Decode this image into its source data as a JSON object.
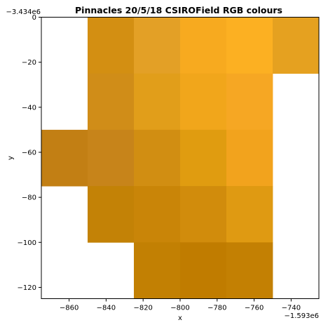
{
  "chart_data": {
    "type": "heatmap",
    "title": "Pinnacles 20/5/18 CSIROField RGB colours",
    "xlabel": "x",
    "ylabel": "y",
    "x_offset_label": "−1.593e6",
    "y_offset_label": "−3.434e6",
    "xlim": [
      -875,
      -725
    ],
    "ylim": [
      -125,
      0
    ],
    "xticks": [
      -860,
      -840,
      -820,
      -800,
      -780,
      -760,
      -740
    ],
    "xtick_labels": [
      "−860",
      "−840",
      "−820",
      "−800",
      "−780",
      "−760",
      "−740"
    ],
    "yticks": [
      0,
      -20,
      -40,
      -60,
      -80,
      -100,
      -120
    ],
    "ytick_labels": [
      "0",
      "−20",
      "−40",
      "−60",
      "−80",
      "−100",
      "−120"
    ],
    "grid": false,
    "cell_width": 25,
    "cell_height": 25,
    "cells": [
      {
        "x": -850,
        "y": 0,
        "color": "#d38f12"
      },
      {
        "x": -825,
        "y": 0,
        "color": "#e3a026"
      },
      {
        "x": -800,
        "y": 0,
        "color": "#f7aa1f"
      },
      {
        "x": -775,
        "y": 0,
        "color": "#fcb022"
      },
      {
        "x": -750,
        "y": 0,
        "color": "#e5a120"
      },
      {
        "x": -850,
        "y": -25,
        "color": "#d08d18"
      },
      {
        "x": -825,
        "y": -25,
        "color": "#e19e1a"
      },
      {
        "x": -800,
        "y": -25,
        "color": "#f1a61b"
      },
      {
        "x": -775,
        "y": -25,
        "color": "#f6a723"
      },
      {
        "x": -875,
        "y": -50,
        "color": "#c27f14"
      },
      {
        "x": -850,
        "y": -50,
        "color": "#c7841a"
      },
      {
        "x": -825,
        "y": -50,
        "color": "#d18e12"
      },
      {
        "x": -800,
        "y": -50,
        "color": "#e09c10"
      },
      {
        "x": -775,
        "y": -50,
        "color": "#f2a31d"
      },
      {
        "x": -850,
        "y": -75,
        "color": "#c38206"
      },
      {
        "x": -825,
        "y": -75,
        "color": "#c98508"
      },
      {
        "x": -800,
        "y": -75,
        "color": "#d18c0c"
      },
      {
        "x": -775,
        "y": -75,
        "color": "#df9a12"
      },
      {
        "x": -825,
        "y": -100,
        "color": "#c28003"
      },
      {
        "x": -800,
        "y": -100,
        "color": "#c07c00"
      },
      {
        "x": -775,
        "y": -100,
        "color": "#c38003"
      }
    ]
  }
}
